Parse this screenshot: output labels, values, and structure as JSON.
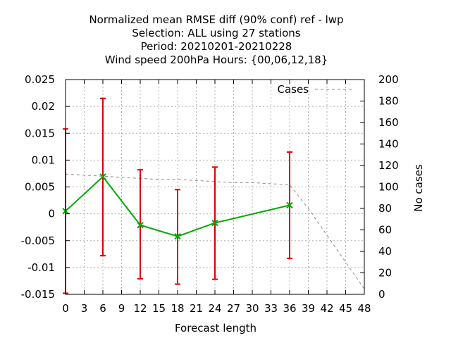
{
  "chart_data": {
    "type": "line",
    "title_lines": [
      "Normalized mean RMSE diff (90% conf) ref - lwp",
      "Selection: ALL using    27 stations",
      "Period: 20210201-20210228",
      "Wind speed 200hPa   Hours: {00,06,12,18}"
    ],
    "xlabel": "Forecast length",
    "ylabel_right": "No cases",
    "x_ticks": [
      "0",
      "3",
      "6",
      "9",
      "12",
      "15",
      "18",
      "21",
      "24",
      "27",
      "30",
      "33",
      "36",
      "39",
      "42",
      "45",
      "48"
    ],
    "xlim": [
      0,
      48
    ],
    "y_ticks_left": [
      "0.025",
      "0.02",
      "0.015",
      "0.01",
      "0.005",
      "0",
      "-0.005",
      "-0.01",
      "-0.015"
    ],
    "ylim_left": [
      -0.015,
      0.025
    ],
    "y_ticks_right": [
      "200",
      "180",
      "160",
      "140",
      "120",
      "100",
      "80",
      "60",
      "40",
      "20",
      "0"
    ],
    "ylim_right": [
      0,
      200
    ],
    "grid": true,
    "legend_position": "top-right",
    "colors": {
      "diff_line": "#00aa00",
      "error_bar": "#dd0000",
      "cases_line": "#888888"
    },
    "diff_series": {
      "x": [
        0,
        6,
        12,
        18,
        24,
        36
      ],
      "y": [
        0.0005,
        0.0069,
        -0.0021,
        -0.0042,
        -0.0017,
        0.0016
      ],
      "err_low": [
        -0.0148,
        -0.0078,
        -0.0121,
        -0.0131,
        -0.0122,
        -0.0083
      ],
      "err_high": [
        0.0158,
        0.0215,
        0.0082,
        0.0045,
        0.0087,
        0.0115
      ]
    },
    "cases_series": {
      "name": "Cases",
      "x": [
        0,
        3,
        6,
        9,
        12,
        15,
        18,
        21,
        24,
        27,
        30,
        33,
        36,
        39,
        42,
        45,
        48
      ],
      "y": [
        112,
        111,
        110,
        109,
        108,
        107,
        107,
        106,
        105,
        104,
        104,
        103,
        102,
        80,
        55,
        30,
        5
      ]
    }
  }
}
